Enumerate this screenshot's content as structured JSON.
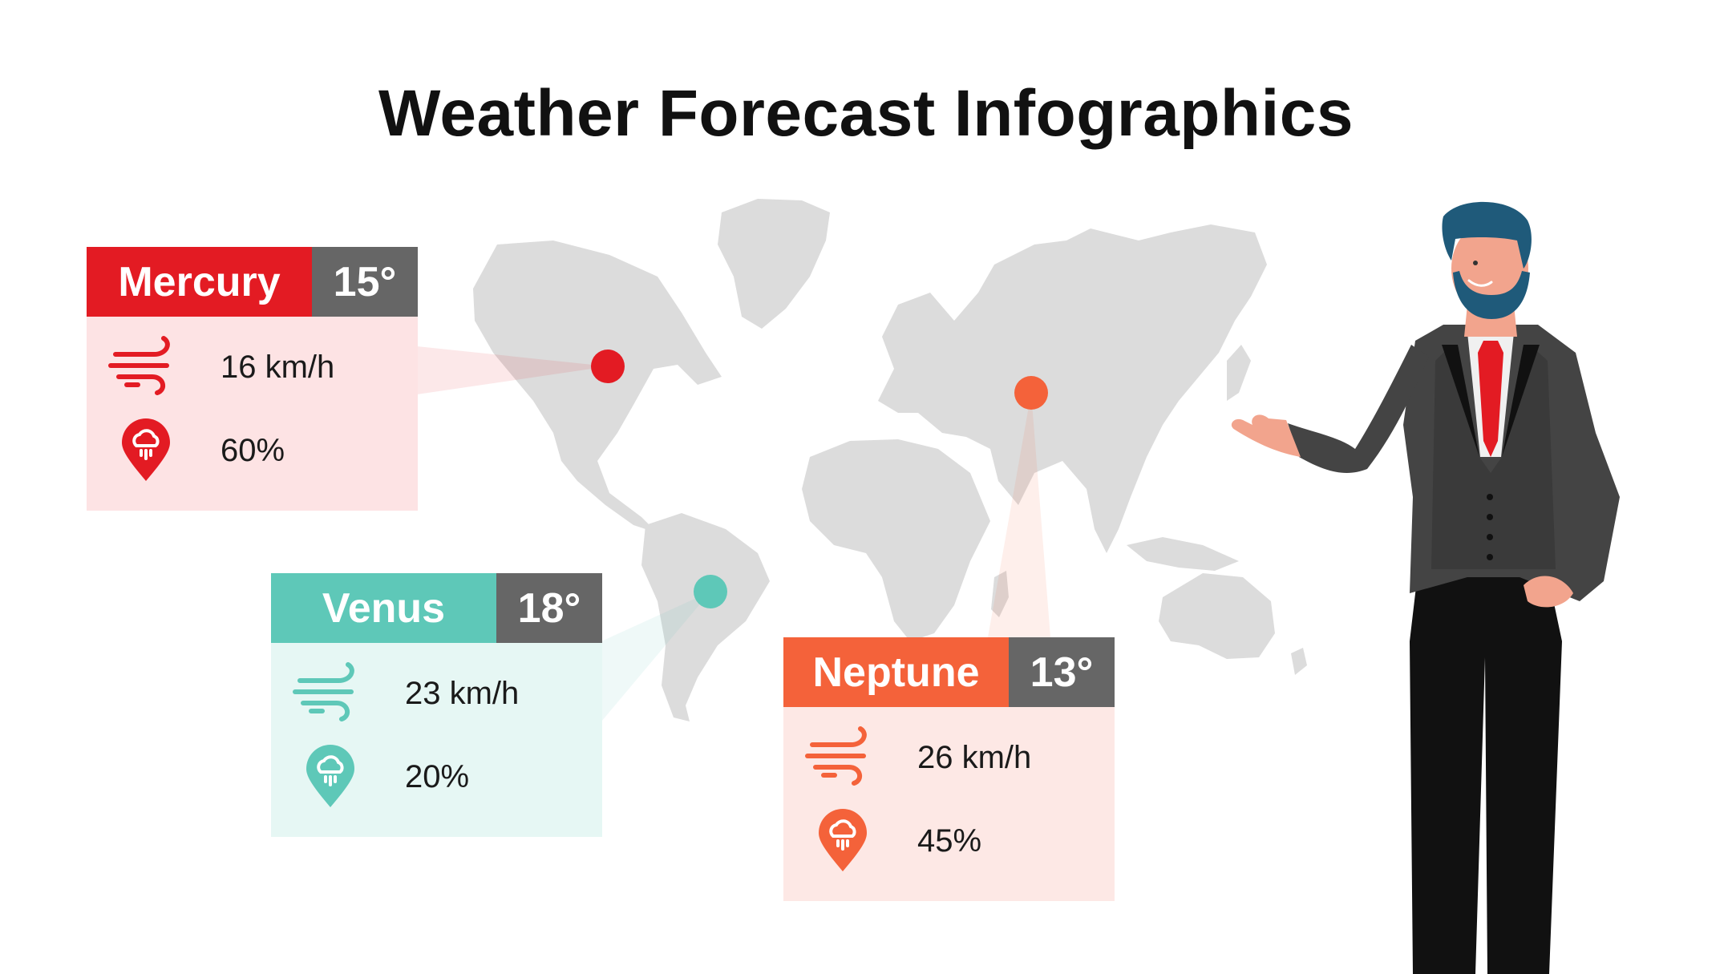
{
  "title": "Weather Forecast Infographics",
  "colors": {
    "map": "#dcdcdc",
    "temp_badge": "#666666",
    "red": "#e31b23",
    "teal": "#5ec8b8",
    "orange": "#f4623a"
  },
  "cities": [
    {
      "name": "Mercury",
      "temperature": "15°",
      "wind": "16 km/h",
      "rain": "60%",
      "color": "#e31b23",
      "body_color": "#fde3e4",
      "wind_icon": "wind-icon",
      "rain_icon": "rain-drop-pin-icon"
    },
    {
      "name": "Venus",
      "temperature": "18°",
      "wind": "23 km/h",
      "rain": "20%",
      "color": "#5ec8b8",
      "body_color": "#e6f7f4",
      "wind_icon": "wind-icon",
      "rain_icon": "rain-drop-pin-icon"
    },
    {
      "name": "Neptune",
      "temperature": "13°",
      "wind": "26 km/h",
      "rain": "45%",
      "color": "#f4623a",
      "body_color": "#fde8e5",
      "wind_icon": "wind-icon",
      "rain_icon": "rain-drop-pin-icon"
    }
  ]
}
